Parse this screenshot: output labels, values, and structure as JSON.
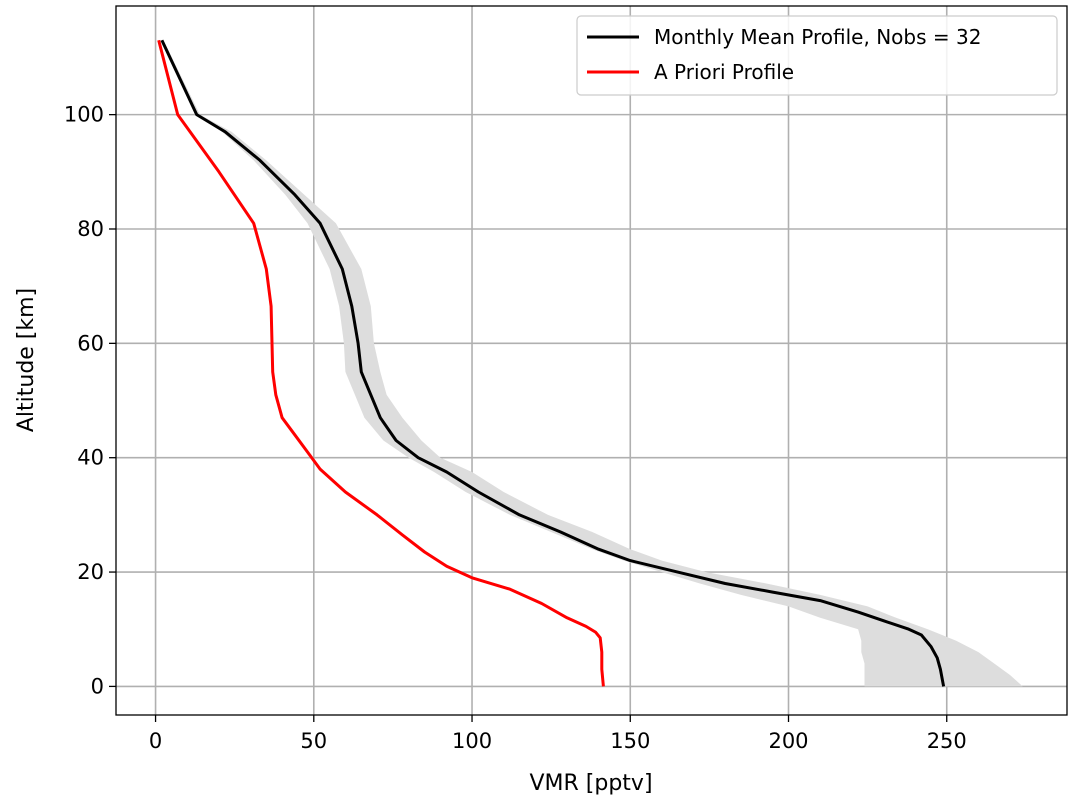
{
  "chart_data": {
    "type": "line",
    "xlabel": "VMR [pptv]",
    "ylabel": "Altitude [km]",
    "xlim": [
      -12.5,
      288
    ],
    "ylim": [
      -5,
      119
    ],
    "xticks": [
      0,
      50,
      100,
      150,
      200,
      250
    ],
    "yticks": [
      0,
      20,
      40,
      60,
      80,
      100
    ],
    "grid": true,
    "legend_position": "top-right",
    "series": [
      {
        "name": "Monthly Mean Profile, Nobs = 32",
        "color": "#000000",
        "x": [
          249,
          248,
          247,
          245,
          242,
          238,
          230,
          222,
          210,
          195,
          180,
          165,
          150,
          140,
          128,
          115,
          102,
          92,
          83,
          76,
          71,
          68,
          65,
          64,
          62,
          59,
          52,
          44,
          33,
          22,
          13,
          2
        ],
        "y": [
          0,
          3,
          5,
          7,
          9,
          10,
          11.5,
          13,
          15,
          16.5,
          18,
          20,
          22,
          24,
          27,
          30,
          34,
          37.5,
          40,
          43,
          47,
          51,
          55,
          60,
          66.5,
          73,
          81,
          86,
          92,
          97,
          100,
          113
        ]
      },
      {
        "name": "A Priori Profile",
        "color": "#ff0000",
        "x": [
          141.5,
          141,
          141,
          140.5,
          139,
          136,
          130,
          122,
          112,
          100,
          92,
          85,
          78,
          70,
          60,
          52,
          48,
          44,
          40,
          38,
          37,
          36.5,
          35,
          33,
          31,
          20,
          7,
          1
        ],
        "y": [
          0,
          3,
          6,
          8.5,
          9.5,
          10.5,
          12,
          14.5,
          17,
          19,
          21,
          23.5,
          26.5,
          30,
          34,
          38,
          41,
          44,
          47,
          51,
          55,
          66.5,
          73,
          77,
          81,
          90,
          100,
          113
        ]
      }
    ],
    "uncertainty_band": {
      "color": "#dddddd",
      "y": [
        0,
        2,
        4,
        6,
        8,
        10,
        12,
        14,
        16,
        18,
        20,
        22,
        24,
        27,
        30,
        34,
        37.5,
        40,
        43,
        47,
        51,
        55,
        60,
        66.5,
        73,
        81,
        86,
        92,
        97,
        100,
        113
      ],
      "x_low": [
        224,
        224,
        224,
        223,
        223,
        222,
        210,
        200,
        185,
        172,
        160,
        148,
        138,
        125,
        112,
        98,
        88,
        80,
        72,
        66,
        63,
        60,
        59.5,
        58,
        55,
        48,
        41,
        31,
        21,
        12.5,
        1.5
      ],
      "x_high": [
        274,
        270,
        265,
        260,
        253,
        244,
        234,
        225,
        210,
        193,
        174,
        160,
        150,
        138,
        124,
        110,
        100,
        90,
        84,
        78,
        73,
        71,
        69,
        68,
        65,
        57,
        47,
        35,
        24,
        14,
        2.5
      ]
    }
  }
}
